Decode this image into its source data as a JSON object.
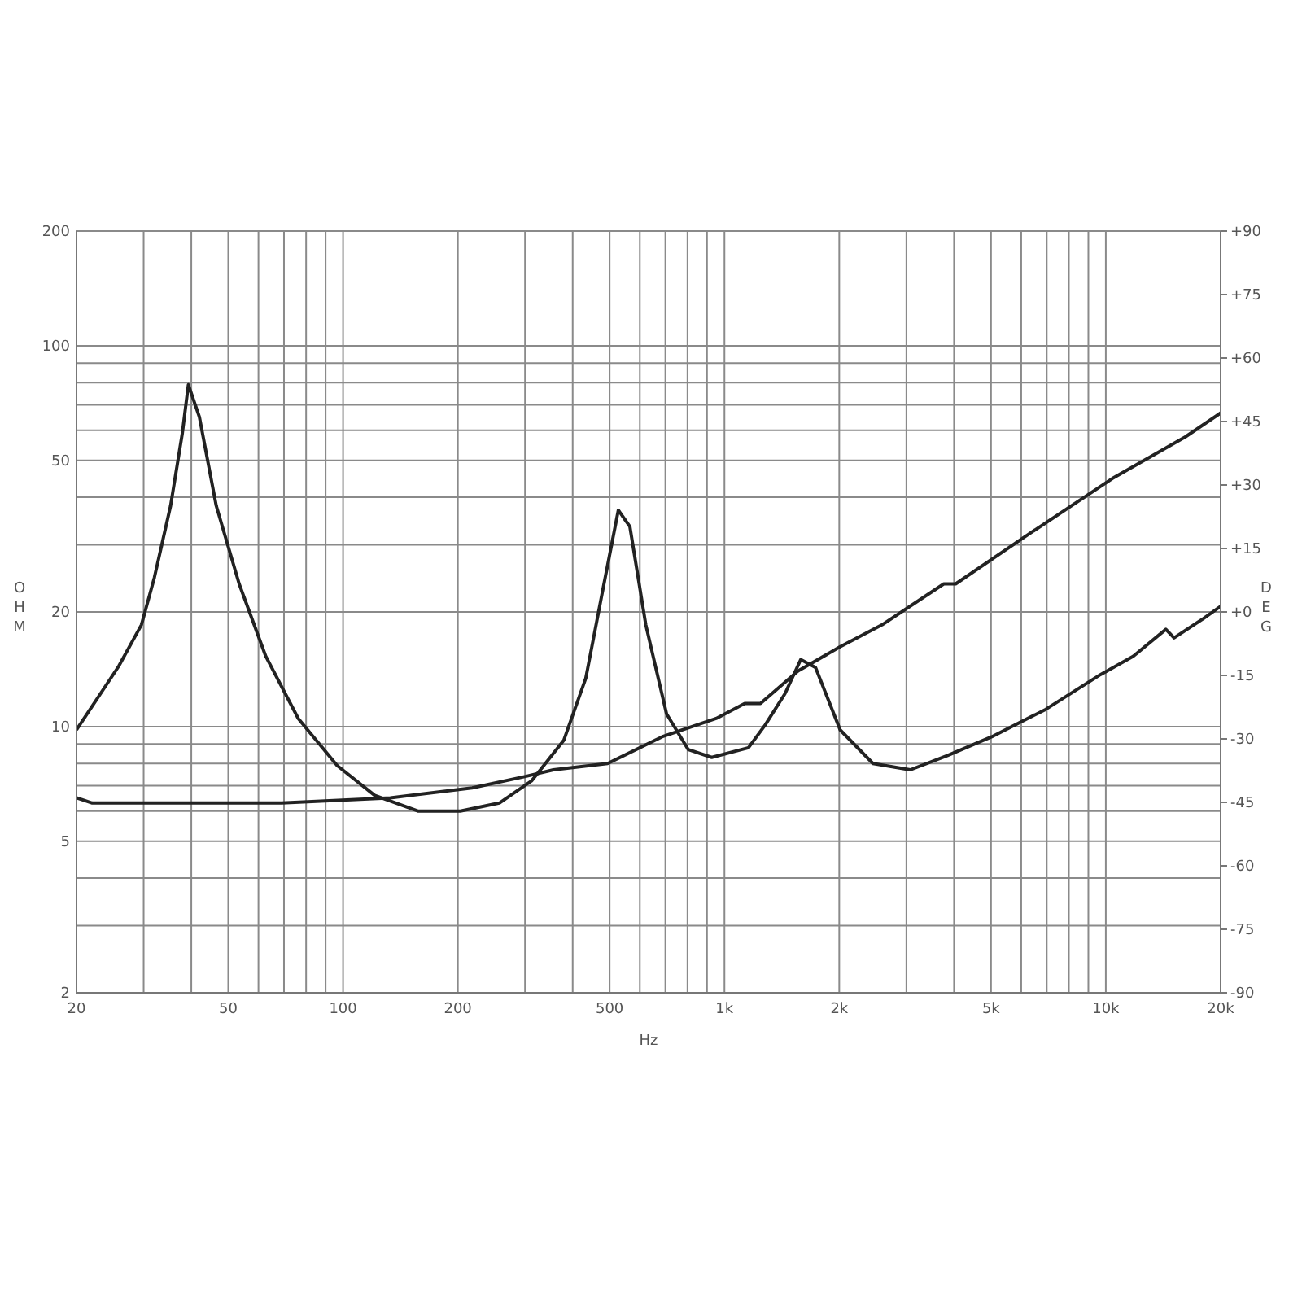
{
  "chart_data": {
    "type": "line",
    "xlabel": "Hz",
    "ylabel": "OHM",
    "y2label": "DEG",
    "log": "xy",
    "grid": true,
    "marker": "none",
    "line_style": "solid",
    "xlim": [
      20,
      20000
    ],
    "xticks": [
      20,
      {
        "value": 30,
        "label": null
      },
      {
        "value": 40,
        "label": null
      },
      50,
      {
        "value": 60,
        "label": null
      },
      {
        "value": 70,
        "label": null
      },
      {
        "value": 80,
        "label": null
      },
      {
        "value": 90,
        "label": null
      },
      100,
      200,
      {
        "value": 300,
        "label": null
      },
      {
        "value": 400,
        "label": null
      },
      500,
      {
        "value": 600,
        "label": null
      },
      {
        "value": 700,
        "label": null
      },
      {
        "value": 800,
        "label": null
      },
      {
        "value": 900,
        "label": null
      },
      {
        "value": 1000,
        "label": "1k"
      },
      {
        "value": 2000,
        "label": "2k"
      },
      {
        "value": 3000,
        "label": null
      },
      {
        "value": 4000,
        "label": null
      },
      {
        "value": 5000,
        "label": "5k"
      },
      {
        "value": 6000,
        "label": null
      },
      {
        "value": 7000,
        "label": null
      },
      {
        "value": 8000,
        "label": null
      },
      {
        "value": 9000,
        "label": null
      },
      {
        "value": 10000,
        "label": "10k"
      },
      {
        "value": 20000,
        "label": "20k"
      }
    ],
    "ylim": [
      2,
      200
    ],
    "yticks": [
      2,
      {
        "value": 3,
        "label": null
      },
      {
        "value": 4,
        "label": null
      },
      5,
      {
        "value": 6,
        "label": null
      },
      {
        "value": 7,
        "label": null
      },
      {
        "value": 8,
        "label": null
      },
      {
        "value": 9,
        "label": null
      },
      10,
      20,
      {
        "value": 30,
        "label": null
      },
      {
        "value": 40,
        "label": null
      },
      50,
      {
        "value": 60,
        "label": null
      },
      {
        "value": 70,
        "label": null
      },
      {
        "value": 80,
        "label": null
      },
      {
        "value": 90,
        "label": null
      },
      100,
      200
    ],
    "y2lim": [
      -90,
      90
    ],
    "y2ticks": [
      {
        "value": 90,
        "label": "+90"
      },
      {
        "value": 75,
        "label": "+75"
      },
      {
        "value": 60,
        "label": "+60"
      },
      {
        "value": 45,
        "label": "+45"
      },
      {
        "value": 30,
        "label": "+30"
      },
      {
        "value": 15,
        "label": "+15"
      },
      {
        "value": 0,
        "label": "+0"
      },
      -15,
      -30,
      -45,
      -60,
      -75,
      -90
    ],
    "series": [
      {
        "color": "#222222",
        "x": [
          20,
          25.8,
          29.6,
          32,
          35.3,
          37.9,
          39.3,
          42,
          46.5,
          53.4,
          62.7,
          76.3,
          96.5,
          121,
          157,
          203,
          257,
          312,
          379,
          433,
          478,
          527,
          565,
          622,
          705,
          804,
          926,
          1156,
          1279,
          1441,
          1585,
          1733,
          2011,
          2452,
          3072,
          3848,
          5020,
          6960,
          9690,
          11800,
          14370,
          15100,
          18000,
          20000
        ],
        "values": [
          9.8,
          14.4,
          18.5,
          24.6,
          38,
          59,
          79,
          65,
          38,
          23.7,
          15.3,
          10.5,
          7.9,
          6.6,
          6,
          6,
          6.3,
          7.2,
          9.2,
          13.4,
          22.4,
          37,
          33.5,
          18.5,
          10.8,
          8.7,
          8.3,
          8.8,
          10.1,
          12.2,
          15,
          14.3,
          9.8,
          8,
          7.7,
          8.4,
          9.4,
          11.1,
          13.7,
          15.3,
          18,
          17.1,
          19.2,
          20.7
        ]
      },
      {
        "color": "#222222",
        "x": [
          20,
          22,
          69,
          133,
          218,
          301,
          356,
          494,
          686,
          951,
          1130,
          1243,
          1560,
          2011,
          2590,
          3760,
          4040,
          6100,
          10400,
          16150,
          20000
        ],
        "values": [
          6.5,
          6.3,
          6.3,
          6.5,
          6.9,
          7.4,
          7.7,
          8,
          9.4,
          10.5,
          11.5,
          11.5,
          14,
          16.2,
          18.5,
          23.7,
          23.7,
          31.4,
          44.8,
          57.6,
          66.6
        ]
      }
    ]
  }
}
